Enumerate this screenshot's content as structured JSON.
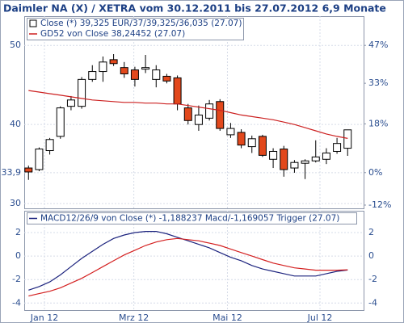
{
  "chart_data": [
    {
      "type": "candlestick",
      "title": "Daimler NA (X) / XETRA vom 30.12.2011 bis 27.07.2012 6,9 Monate",
      "x": [
        0,
        1,
        2,
        3,
        4,
        5,
        6,
        7,
        8,
        9,
        10,
        11,
        12,
        13,
        14,
        15,
        16,
        17,
        18,
        19,
        20,
        21,
        22,
        23,
        24,
        25,
        26,
        27,
        28,
        29,
        30
      ],
      "series": [
        {
          "name": "Close (*) 39,325 EUR/37/39,325/36,035 (27.07)",
          "up_color": "#ffffff",
          "down_color": "#e2481c",
          "color": "#000000",
          "open": [
            34.5,
            34.3,
            36.7,
            38.5,
            42.3,
            42.3,
            45.7,
            46.7,
            48.2,
            47.2,
            46.9,
            47.0,
            45.7,
            46.1,
            45.9,
            42.1,
            40.0,
            40.8,
            42.9,
            38.7,
            39.0,
            37.2,
            38.5,
            35.6,
            36.9,
            34.5,
            35.1,
            35.4,
            35.6,
            36.6,
            37
          ],
          "high": [
            34.8,
            37.1,
            38.3,
            42.3,
            43.6,
            46.0,
            47.5,
            48.6,
            48.9,
            47.9,
            47.3,
            48.8,
            47.5,
            46.4,
            46.2,
            42.6,
            42.4,
            43.1,
            43.2,
            40.2,
            39.4,
            38.6,
            38.7,
            37.0,
            37.3,
            35.5,
            35.6,
            38.0,
            37.0,
            38.3,
            39.325
          ],
          "low": [
            33.0,
            34.1,
            36.2,
            38.2,
            41.8,
            42.0,
            45.4,
            45.4,
            47.4,
            45.9,
            44.8,
            46.5,
            44.7,
            45.2,
            41.8,
            40.0,
            39.2,
            40.5,
            39.2,
            38.3,
            37.0,
            36.4,
            35.9,
            34.5,
            33.4,
            33.9,
            33.1,
            35.2,
            35.0,
            36.3,
            36.035
          ],
          "close": [
            34.0,
            36.9,
            38.1,
            42.1,
            43.1,
            45.7,
            46.7,
            47.9,
            47.7,
            46.4,
            45.7,
            47.2,
            46.9,
            45.5,
            42.6,
            40.5,
            41.2,
            42.6,
            39.5,
            39.5,
            37.4,
            38.2,
            36.1,
            36.6,
            34.3,
            35.2,
            35.4,
            35.9,
            36.4,
            37.6,
            39.325
          ]
        },
        {
          "name": "GD52 von Close 38,24452 (27.07)",
          "color": "#cc2020",
          "values": [
            44.3,
            44.1,
            43.9,
            43.7,
            43.5,
            43.3,
            43.1,
            43.0,
            42.9,
            42.8,
            42.8,
            42.7,
            42.7,
            42.6,
            42.6,
            42.4,
            42.2,
            42.0,
            41.8,
            41.5,
            41.2,
            41.0,
            40.8,
            40.6,
            40.3,
            40.0,
            39.6,
            39.2,
            38.8,
            38.5,
            38.24452
          ]
        }
      ],
      "ylim": [
        29.4,
        53.7
      ],
      "yticks": [
        30,
        {
          "value": 33.9,
          "label": "33,9"
        },
        40,
        50
      ],
      "y2lim": [
        -13.2,
        57.8
      ],
      "y2ticks": [
        {
          "value": -12,
          "label": "-12%"
        },
        {
          "value": 0,
          "label": "0%"
        },
        {
          "value": 18,
          "label": "18%"
        },
        {
          "value": 33,
          "label": "33%"
        },
        {
          "value": 47,
          "label": "47%"
        }
      ],
      "grid": true
    },
    {
      "type": "line",
      "legend": "MACD12/26/9 von Close (*) -1,188237 Macd/-1,169057 Trigger (27.07)",
      "series": [
        {
          "color": "#1c237e",
          "values": [
            -2.9,
            -2.6,
            -2.2,
            -1.6,
            -0.9,
            -0.2,
            0.4,
            1.0,
            1.5,
            1.8,
            2.0,
            2.1,
            2.1,
            1.9,
            1.6,
            1.3,
            1.0,
            0.7,
            0.3,
            -0.1,
            -0.4,
            -0.8,
            -1.1,
            -1.3,
            -1.5,
            -1.7,
            -1.7,
            -1.7,
            -1.5,
            -1.3,
            -1.188237
          ]
        },
        {
          "color": "#d42020",
          "values": [
            -3.4,
            -3.2,
            -3.0,
            -2.7,
            -2.3,
            -1.9,
            -1.4,
            -0.9,
            -0.4,
            0.1,
            0.5,
            0.9,
            1.2,
            1.4,
            1.5,
            1.4,
            1.3,
            1.1,
            0.9,
            0.6,
            0.3,
            0.0,
            -0.3,
            -0.6,
            -0.8,
            -1.0,
            -1.1,
            -1.2,
            -1.2,
            -1.2,
            -1.169057
          ]
        }
      ],
      "xlim": [
        -0.4,
        31.5
      ],
      "xticks": [
        {
          "value": 1.5,
          "label": "Jan 12"
        },
        {
          "value": 9.9,
          "label": "Mrz 12"
        },
        {
          "value": 18.7,
          "label": "Mai 12"
        },
        {
          "value": 27.4,
          "label": "Jul 12"
        }
      ],
      "ylim": [
        -4.6,
        3.86
      ],
      "yticks": [
        -4,
        -2,
        0,
        2
      ],
      "grid": true
    }
  ]
}
